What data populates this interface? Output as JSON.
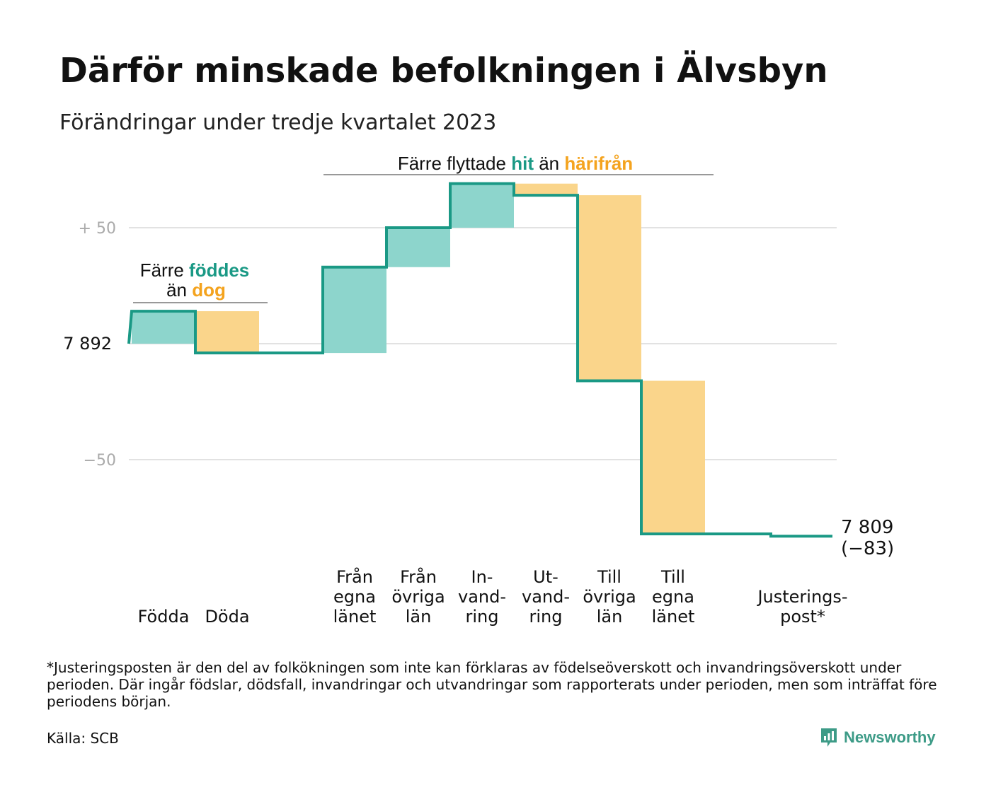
{
  "title": "Därför minskade befolkningen i Älvsbyn",
  "subtitle": "Förändringar under tredje kvartalet 2023",
  "annotations": {
    "births": {
      "line1_prefix": "Färre ",
      "line1_highlight": "föddes",
      "line2_prefix": "än ",
      "line2_highlight": "dog"
    },
    "migration": {
      "prefix": "Färre flyttade ",
      "highlight1": "hit",
      "middle": " än ",
      "highlight2": "härifrån"
    }
  },
  "end_label": {
    "value": "7 809",
    "change": "(−83)"
  },
  "footnote": "*Justeringsposten är den del av folkökningen som inte kan förklaras av födelseöverskott och invandringsöverskott under perioden. Där ingår födslar, dödsfall, invandringar och utvandringar som rapporterats under perioden, men som inträffat före periodens början.",
  "source": "Källa: SCB",
  "brand": {
    "name": "Newsworthy",
    "icon": "newsworthy-logo-icon"
  },
  "colors": {
    "increase": "#8dd5cc",
    "decrease": "#fad58b",
    "line": "#1a9985",
    "highlight_green": "#1a9985",
    "highlight_orange": "#f4a31e",
    "grid": "#e2e2e2"
  },
  "chart_data": {
    "type": "waterfall",
    "start_value": 7892,
    "end_value": 7809,
    "total_change": -83,
    "y_ticks": [
      {
        "value": 50,
        "label": "+  50"
      },
      {
        "value": 0,
        "label": "7  892"
      },
      {
        "value": -50,
        "label": "−50"
      }
    ],
    "ylim": [
      -83,
      69
    ],
    "steps": [
      {
        "label_lines": [
          "Födda"
        ],
        "value": 14
      },
      {
        "label_lines": [
          "Döda"
        ],
        "value": -18
      },
      {
        "label_lines": [],
        "value": 0
      },
      {
        "label_lines": [
          "Från",
          "egna",
          "länet"
        ],
        "value": 37
      },
      {
        "label_lines": [
          "Från",
          "övriga",
          "län"
        ],
        "value": 17
      },
      {
        "label_lines": [
          "In-",
          "vand-",
          "ring"
        ],
        "value": 19
      },
      {
        "label_lines": [
          "Ut-",
          "vand-",
          "ring"
        ],
        "value": -5
      },
      {
        "label_lines": [
          "Till",
          "övriga",
          "län"
        ],
        "value": -80
      },
      {
        "label_lines": [
          "Till",
          "egna",
          "länet"
        ],
        "value": -66
      },
      {
        "label_lines": [],
        "value": 0
      },
      {
        "label_lines": [
          "Justerings-",
          "post*"
        ],
        "value": -1
      }
    ]
  }
}
